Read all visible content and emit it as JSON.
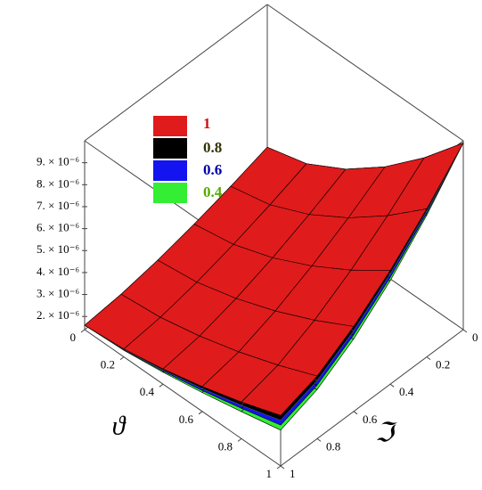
{
  "chart_data": {
    "type": "surface",
    "xlabel": "ϑ",
    "ylabel": "ℑ",
    "x": [
      0,
      0.2,
      0.4,
      0.6,
      0.8,
      1
    ],
    "y": [
      0,
      0.2,
      0.4,
      0.6,
      0.8,
      1
    ],
    "xlim": [
      0,
      1
    ],
    "ylim": [
      0,
      1
    ],
    "xticks": [
      0,
      0.2,
      0.4,
      0.6,
      0.8,
      1
    ],
    "yticks": [
      0,
      0.2,
      0.4,
      0.6,
      0.8,
      1
    ],
    "zlim": [
      1.4e-06,
      1e-05
    ],
    "zticks": [
      {
        "value": 2e-06,
        "label": "2. × 10⁻⁶"
      },
      {
        "value": 3e-06,
        "label": "3. × 10⁻⁶"
      },
      {
        "value": 4e-06,
        "label": "4. × 10⁻⁶"
      },
      {
        "value": 5e-06,
        "label": "5. × 10⁻⁶"
      },
      {
        "value": 6e-06,
        "label": "6. × 10⁻⁶"
      },
      {
        "value": 7e-06,
        "label": "7. × 10⁻⁶"
      },
      {
        "value": 8e-06,
        "label": "8. × 10⁻⁶"
      },
      {
        "value": 9e-06,
        "label": "9. × 10⁻⁶"
      }
    ],
    "series": [
      {
        "name": "1",
        "color": "#e01b1b",
        "label_color": "#cc1111",
        "z": [
          [
            3.5e-06,
            2.96e-06,
            2.48e-06,
            2.08e-06,
            1.77e-06,
            1.6e-06
          ],
          [
            3.99e-06,
            3.36e-06,
            2.8e-06,
            2.32e-06,
            1.96e-06,
            1.76e-06
          ],
          [
            4.98e-06,
            4.16e-06,
            3.43e-06,
            2.82e-06,
            2.35e-06,
            2.09e-06
          ],
          [
            6.33e-06,
            5.25e-06,
            4.3e-06,
            3.49e-06,
            2.87e-06,
            2.53e-06
          ],
          [
            7.98e-06,
            6.59e-06,
            5.35e-06,
            4.31e-06,
            3.51e-06,
            3.07e-06
          ],
          [
            9.9e-06,
            8.14e-06,
            6.58e-06,
            5.27e-06,
            4.25e-06,
            3.7e-06
          ]
        ]
      },
      {
        "name": "0.8",
        "color": "#000000",
        "label_color": "#333300",
        "z": [
          [
            3.5e-06,
            2.96e-06,
            2.48e-06,
            2.08e-06,
            1.77e-06,
            1.6e-06
          ],
          [
            3.99e-06,
            3.35e-06,
            2.79e-06,
            2.3e-06,
            1.94e-06,
            1.74e-06
          ],
          [
            4.98e-06,
            4.14e-06,
            3.4e-06,
            2.78e-06,
            2.3e-06,
            2.04e-06
          ],
          [
            6.33e-06,
            5.21e-06,
            4.24e-06,
            3.41e-06,
            2.79e-06,
            2.44e-06
          ],
          [
            7.98e-06,
            6.53e-06,
            5.25e-06,
            4.19e-06,
            3.38e-06,
            2.92e-06
          ],
          [
            9.9e-06,
            8.04e-06,
            6.42e-06,
            5.08e-06,
            4.05e-06,
            3.48e-06
          ]
        ]
      },
      {
        "name": "0.6",
        "color": "#1414f0",
        "label_color": "#0000aa",
        "z": [
          [
            3.5e-06,
            2.96e-06,
            2.48e-06,
            2.08e-06,
            1.77e-06,
            1.6e-06
          ],
          [
            3.99e-06,
            3.34e-06,
            2.77e-06,
            2.29e-06,
            1.92e-06,
            1.72e-06
          ],
          [
            4.98e-06,
            4.12e-06,
            3.36e-06,
            2.74e-06,
            2.26e-06,
            1.99e-06
          ],
          [
            6.33e-06,
            5.17e-06,
            4.18e-06,
            3.34e-06,
            2.7e-06,
            2.35e-06
          ],
          [
            7.98e-06,
            6.46e-06,
            5.14e-06,
            4.06e-06,
            3.24e-06,
            2.78e-06
          ],
          [
            9.9e-06,
            7.94e-06,
            6.26e-06,
            4.89e-06,
            3.84e-06,
            3.26e-06
          ]
        ]
      },
      {
        "name": "0.4",
        "color": "#33ee33",
        "label_color": "#55aa00",
        "z": [
          [
            3.5e-06,
            2.96e-06,
            2.48e-06,
            2.08e-06,
            1.77e-06,
            1.6e-06
          ],
          [
            3.99e-06,
            3.34e-06,
            2.76e-06,
            2.27e-06,
            1.9e-06,
            1.7e-06
          ],
          [
            4.98e-06,
            4.1e-06,
            3.33e-06,
            2.7e-06,
            2.21e-06,
            1.94e-06
          ],
          [
            6.33e-06,
            5.14e-06,
            4.11e-06,
            3.26e-06,
            2.62e-06,
            2.26e-06
          ],
          [
            7.98e-06,
            6.4e-06,
            5.04e-06,
            3.94e-06,
            3.11e-06,
            2.63e-06
          ],
          [
            9.9e-06,
            7.85e-06,
            6.11e-06,
            4.7e-06,
            3.64e-06,
            3.03e-06
          ]
        ]
      }
    ]
  }
}
